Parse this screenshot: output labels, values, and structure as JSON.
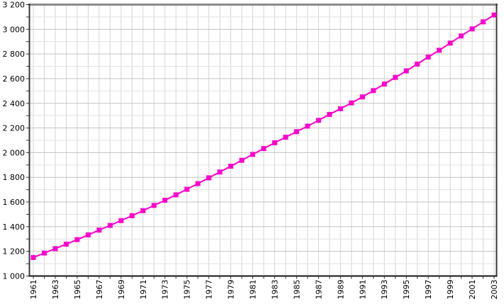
{
  "window": {
    "background_color": "#ffffff"
  },
  "chart_data": {
    "type": "line",
    "title": "",
    "xlabel": "",
    "ylabel": "",
    "legend_position": "none",
    "grid": true,
    "line_color": "#ff00cc",
    "marker_shape": "square",
    "marker_size": 7,
    "ylim": [
      1000,
      3200
    ],
    "xlim": [
      1961,
      2003
    ],
    "y_major_step": 200,
    "y_minor_step": 100,
    "x_grid_step": 1,
    "x_label_every": 2,
    "x": [
      1961,
      1962,
      1963,
      1964,
      1965,
      1966,
      1967,
      1968,
      1969,
      1970,
      1971,
      1972,
      1973,
      1974,
      1975,
      1976,
      1977,
      1978,
      1979,
      1980,
      1981,
      1982,
      1983,
      1984,
      1985,
      1986,
      1987,
      1988,
      1989,
      1990,
      1991,
      1992,
      1993,
      1994,
      1995,
      1996,
      1997,
      1998,
      1999,
      2000,
      2001,
      2002,
      2003
    ],
    "values": [
      1150,
      1186,
      1222,
      1258,
      1295,
      1333,
      1372,
      1410,
      1449,
      1489,
      1530,
      1572,
      1614,
      1658,
      1703,
      1749,
      1796,
      1843,
      1890,
      1938,
      1986,
      2033,
      2080,
      2125,
      2170,
      2215,
      2262,
      2310,
      2356,
      2403,
      2452,
      2503,
      2556,
      2610,
      2663,
      2718,
      2775,
      2830,
      2888,
      2946,
      3003,
      3060,
      3116
    ],
    "y_tick_labels": [
      "1 000",
      "1 200",
      "1 400",
      "1 600",
      "1 800",
      "2 000",
      "2 200",
      "2 400",
      "2 600",
      "2 800",
      "3 000",
      "3 200"
    ],
    "x_tick_labels": [
      "1961",
      "1963",
      "1965",
      "1967",
      "1969",
      "1971",
      "1973",
      "1975",
      "1977",
      "1979",
      "1981",
      "1983",
      "1985",
      "1987",
      "1989",
      "1991",
      "1993",
      "1995",
      "1997",
      "1999",
      "2001",
      "2003"
    ]
  }
}
